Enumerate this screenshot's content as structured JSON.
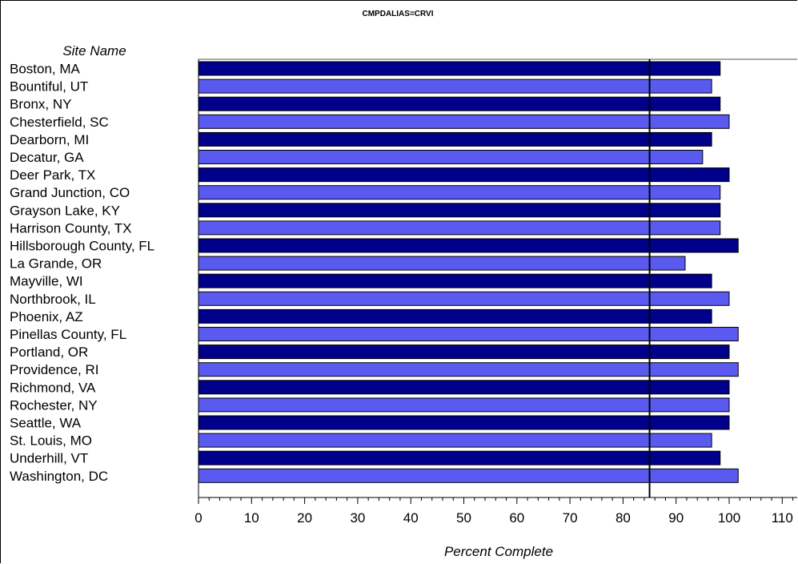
{
  "chart_data": {
    "type": "bar",
    "orientation": "horizontal",
    "title": "CMPDALIAS=CRVI",
    "category_axis_label": "Site Name",
    "xlabel": "Percent Complete",
    "xlim": [
      0,
      112
    ],
    "xticks": [
      "0",
      "10",
      "20",
      "30",
      "40",
      "50",
      "60",
      "70",
      "80",
      "90",
      "100",
      "110"
    ],
    "reference_line": 85,
    "colors": [
      "#00008b",
      "#5a5af0"
    ],
    "categories": [
      "Boston, MA",
      "Bountiful, UT",
      "Bronx, NY",
      "Chesterfield, SC",
      "Dearborn, MI",
      "Decatur, GA",
      "Deer Park, TX",
      "Grand Junction, CO",
      "Grayson Lake, KY",
      "Harrison County, TX",
      "Hillsborough County, FL",
      "La Grande, OR",
      "Mayville, WI",
      "Northbrook, IL",
      "Phoenix, AZ",
      "Pinellas County, FL",
      "Portland, OR",
      "Providence, RI",
      "Richmond, VA",
      "Rochester, NY",
      "Seattle, WA",
      "St. Louis, MO",
      "Underhill, VT",
      "Washington, DC"
    ],
    "values": [
      98.3,
      96.7,
      98.3,
      100,
      96.7,
      95,
      100,
      98.3,
      98.3,
      98.3,
      101.7,
      91.7,
      96.7,
      100,
      96.7,
      101.7,
      100,
      101.7,
      100,
      100,
      100,
      96.7,
      98.3,
      101.7
    ]
  }
}
